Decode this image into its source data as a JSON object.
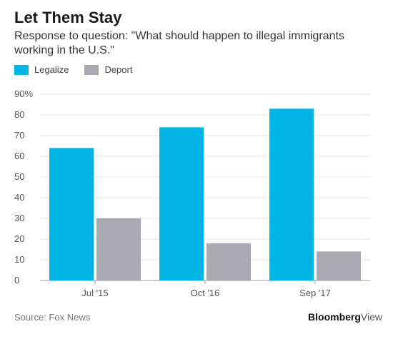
{
  "header": {
    "title": "Let Them Stay",
    "subtitle": "Response to question: \"What should happen to illegal immigrants working in the U.S.\""
  },
  "legend": [
    {
      "label": "Legalize",
      "color": "#00b5e6"
    },
    {
      "label": "Deport",
      "color": "#a9a8b2"
    }
  ],
  "footer": {
    "source": "Source: Fox News",
    "brand_bold": "Bloomberg",
    "brand_light": "View"
  },
  "chart_data": {
    "type": "bar",
    "categories": [
      "Jul '15",
      "Oct '16",
      "Sep '17"
    ],
    "series": [
      {
        "name": "Legalize",
        "values": [
          64,
          74,
          83
        ],
        "color": "#00b5e6"
      },
      {
        "name": "Deport",
        "values": [
          30,
          18,
          14
        ],
        "color": "#a9a8b2"
      }
    ],
    "yticks": [
      "0",
      "10",
      "20",
      "30",
      "40",
      "50",
      "60",
      "70",
      "80",
      "90%"
    ],
    "ylim": [
      0,
      90
    ],
    "grid": true,
    "legend_position": "top-left"
  }
}
